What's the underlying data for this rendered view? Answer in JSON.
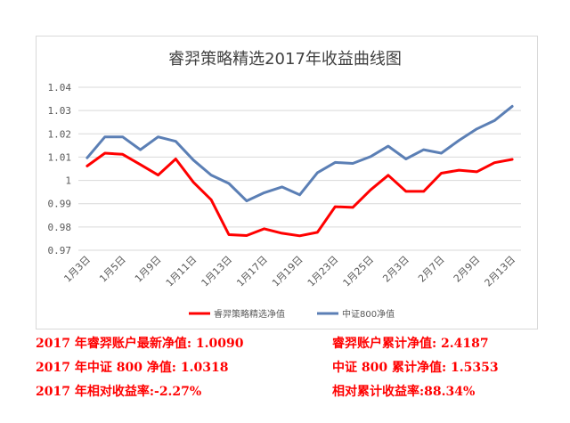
{
  "chart_data": {
    "type": "line",
    "title": "睿羿策略精选2017年收益曲线图",
    "xlabel": "",
    "ylabel": "",
    "ylim": [
      0.97,
      1.04
    ],
    "y_ticks": [
      "0.97",
      "0.98",
      "0.99",
      "1",
      "1.01",
      "1.02",
      "1.03",
      "1.04"
    ],
    "x_tick_labels": [
      "1月3日",
      "1月5日",
      "1月9日",
      "1月11日",
      "1月13日",
      "1月17日",
      "1月19日",
      "1月23日",
      "1月25日",
      "2月3日",
      "2月7日",
      "2月9日",
      "2月13日"
    ],
    "grid": true,
    "legend_position": "bottom",
    "series": [
      {
        "name": "睿羿策略精选净值",
        "color": "#ff0000",
        "values": [
          1.0062,
          1.0117,
          1.0112,
          1.0068,
          1.0023,
          1.0092,
          0.9992,
          0.9917,
          0.9767,
          0.9763,
          0.9792,
          0.9773,
          0.9762,
          0.9777,
          0.9887,
          0.9884,
          0.9959,
          1.0022,
          0.9953,
          0.9953,
          1.0031,
          1.0044,
          1.0037,
          1.0076,
          1.009
        ]
      },
      {
        "name": "中证800净值",
        "color": "#5b7fb5",
        "values": [
          1.0097,
          1.0187,
          1.0187,
          1.0132,
          1.0187,
          1.0168,
          1.0087,
          1.0023,
          0.9987,
          0.9912,
          0.9947,
          0.9972,
          0.9938,
          1.0033,
          1.0077,
          1.0073,
          1.0102,
          1.0147,
          1.0092,
          1.0132,
          1.0117,
          1.0172,
          1.0221,
          1.0257,
          1.0318
        ]
      }
    ]
  },
  "stats": {
    "left": [
      "2017 年睿羿账户最新净值: 1.0090",
      "2017 年中证 800 净值: 1.0318",
      "2017 年相对收益率:-2.27%"
    ],
    "right": [
      "睿羿账户累计净值: 2.4187",
      "中证 800 累计净值: 1.5353",
      "相对累计收益率:88.34%"
    ]
  }
}
